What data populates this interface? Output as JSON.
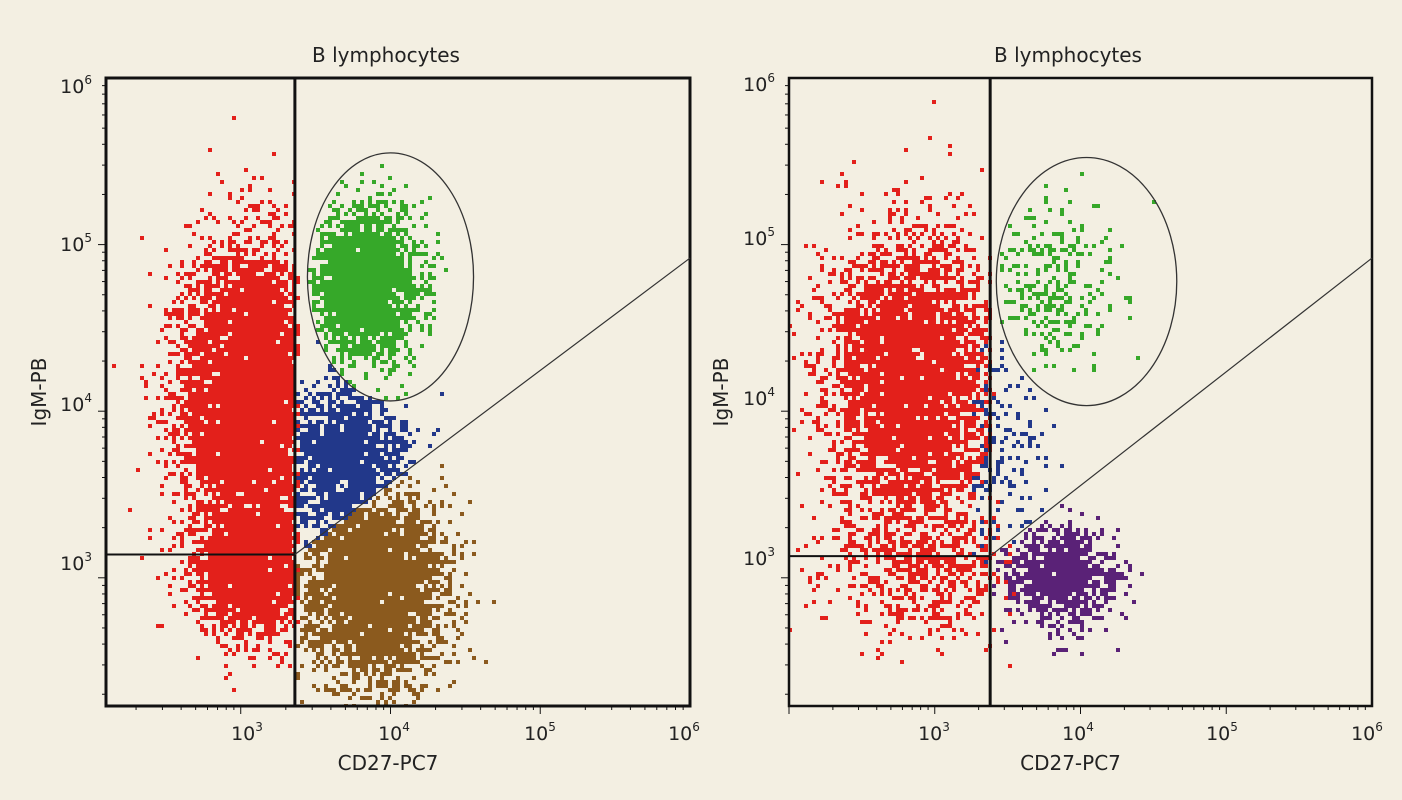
{
  "figure": {
    "background": "#f3efe2",
    "axis_color": "#111111"
  },
  "chart_data": [
    {
      "type": "scatter",
      "title": "B lymphocytes",
      "xlabel": "CD27-PC7",
      "ylabel": "IgM-PB",
      "x_scale": "log",
      "y_scale": "log",
      "xlim": [
        126,
        1000000
      ],
      "ylim": [
        170,
        1000000
      ],
      "x_ticks": [
        "10^3",
        "10^4",
        "10^5",
        "10^6"
      ],
      "y_ticks": [
        "10^3",
        "10^4",
        "10^5",
        "10^6"
      ],
      "gates": {
        "vertical_x": 2300,
        "horizontal_y": 1380,
        "horizontal_y_to_x": 2300,
        "diagonal": [
          [
            2300,
            1380
          ],
          [
            1000000,
            83000
          ]
        ],
        "ellipse": {
          "center_x": 10000,
          "center_y": 64000,
          "x_range": [
            2800,
            36000
          ],
          "y_range": [
            12000,
            370000
          ]
        }
      },
      "series": [
        {
          "color": "#e3201b",
          "clusters": [
            {
              "cx": 1100,
              "cy": 12000,
              "sx": 0.22,
              "sy": 0.45,
              "n": 6000,
              "xmax": 2300
            },
            {
              "cx": 1200,
              "cy": 1000,
              "sx": 0.2,
              "sy": 0.18,
              "n": 1500,
              "xmax": 2300
            }
          ]
        },
        {
          "color": "#22388a",
          "clusters": [
            {
              "cx": 5000,
              "cy": 5000,
              "sx": 0.2,
              "sy": 0.25,
              "n": 1300,
              "xmin": 2300,
              "above_diagonal": true
            }
          ]
        },
        {
          "color": "#36a829",
          "clusters": [
            {
              "cx": 6500,
              "cy": 60000,
              "sx": 0.18,
              "sy": 0.22,
              "n": 2200,
              "in_ellipse": true
            }
          ]
        },
        {
          "color": "#8b5a1e",
          "clusters": [
            {
              "cx": 7500,
              "cy": 900,
              "sx": 0.24,
              "sy": 0.3,
              "n": 3000,
              "xmin": 2300,
              "below_diagonal": true
            }
          ]
        }
      ]
    },
    {
      "type": "scatter",
      "title": "B lymphocytes",
      "xlabel": "CD27-PC7",
      "ylabel": "IgM-PB",
      "x_scale": "log",
      "y_scale": "log",
      "xlim": [
        100,
        1000000
      ],
      "ylim": [
        170,
        1000000
      ],
      "x_ticks": [
        "10^3",
        "10^4",
        "10^5",
        "10^6"
      ],
      "y_ticks": [
        "10^3",
        "10^4",
        "10^5",
        "10^6"
      ],
      "gates": {
        "vertical_x": 2400,
        "horizontal_y": 1350,
        "horizontal_y_to_x": 2400,
        "diagonal": [
          [
            2400,
            1350
          ],
          [
            1000000,
            83000
          ]
        ],
        "ellipse": {
          "center_x": 11000,
          "center_y": 60000,
          "x_range": [
            2600,
            45000
          ],
          "y_range": [
            12000,
            370000
          ]
        }
      },
      "series": [
        {
          "color": "#e3201b",
          "clusters": [
            {
              "cx": 650,
              "cy": 15000,
              "sx": 0.28,
              "sy": 0.45,
              "n": 4200,
              "xmax": 2400
            },
            {
              "cx": 800,
              "cy": 1100,
              "sx": 0.3,
              "sy": 0.2,
              "n": 500,
              "xmax": 3500
            }
          ]
        },
        {
          "color": "#22388a",
          "clusters": [
            {
              "cx": 2500,
              "cy": 6000,
              "sx": 0.2,
              "sy": 0.3,
              "n": 150,
              "xmin": 1800
            }
          ]
        },
        {
          "color": "#36a829",
          "clusters": [
            {
              "cx": 6000,
              "cy": 60000,
              "sx": 0.25,
              "sy": 0.25,
              "n": 260,
              "in_ellipse": true
            }
          ]
        },
        {
          "color": "#5a2277",
          "clusters": [
            {
              "cx": 7000,
              "cy": 1050,
              "sx": 0.18,
              "sy": 0.15,
              "n": 900,
              "xmin": 2400,
              "below_diagonal": true
            }
          ]
        }
      ]
    }
  ]
}
